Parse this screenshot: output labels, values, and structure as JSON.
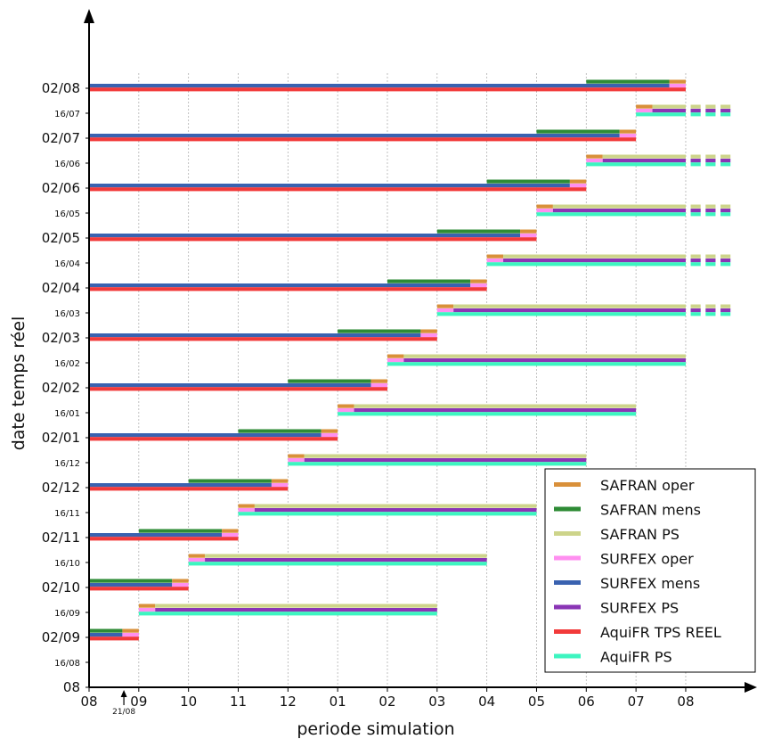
{
  "chart_data": {
    "type": "gantt",
    "xlabel": "periode simulation",
    "ylabel": "date temps réel",
    "x_ticks": [
      "08",
      "09",
      "10",
      "11",
      "12",
      "01",
      "02",
      "03",
      "04",
      "05",
      "06",
      "07",
      "08"
    ],
    "y_ticks": [
      "08",
      "16/08",
      "02/09",
      "16/09",
      "02/10",
      "16/10",
      "02/11",
      "16/11",
      "02/12",
      "16/12",
      "02/01",
      "16/01",
      "02/02",
      "16/02",
      "02/03",
      "16/03",
      "02/04",
      "16/04",
      "02/05",
      "16/05",
      "02/06",
      "16/06",
      "02/07",
      "16/07",
      "02/08"
    ],
    "x_range": [
      0,
      12.9
    ],
    "y_range": [
      0,
      24
    ],
    "grid": "vertical dotted",
    "legend_position": "bottom-right",
    "annotation": {
      "text": "21/08",
      "x": 0.7
    },
    "series": [
      {
        "name": "SAFRAN oper",
        "color": "#d9903a"
      },
      {
        "name": "SAFRAN mens",
        "color": "#2e8b35"
      },
      {
        "name": "SAFRAN PS",
        "color": "#cdd48a"
      },
      {
        "name": "SURFEX oper",
        "color": "#ff8ff0"
      },
      {
        "name": "SURFEX mens",
        "color": "#3a62b0"
      },
      {
        "name": "SURFEX PS",
        "color": "#8a35b5"
      },
      {
        "name": "AquiFR TPS REEL",
        "color": "#f23a3a"
      },
      {
        "name": "AquiFR PS",
        "color": "#3df5c0"
      }
    ],
    "runs_first_of_month": [
      {
        "y": 2,
        "mens_start": 0,
        "mens_end": 0.67,
        "oper_end": 1
      },
      {
        "y": 4,
        "mens_start": 0,
        "mens_end": 1.67,
        "oper_end": 2
      },
      {
        "y": 6,
        "mens_start": 1,
        "mens_end": 2.67,
        "oper_end": 3
      },
      {
        "y": 8,
        "mens_start": 2,
        "mens_end": 3.67,
        "oper_end": 4
      },
      {
        "y": 10,
        "mens_start": 3,
        "mens_end": 4.67,
        "oper_end": 5
      },
      {
        "y": 12,
        "mens_start": 4,
        "mens_end": 5.67,
        "oper_end": 6
      },
      {
        "y": 14,
        "mens_start": 5,
        "mens_end": 6.67,
        "oper_end": 7
      },
      {
        "y": 16,
        "mens_start": 6,
        "mens_end": 7.67,
        "oper_end": 8
      },
      {
        "y": 18,
        "mens_start": 7,
        "mens_end": 8.67,
        "oper_end": 9
      },
      {
        "y": 20,
        "mens_start": 8,
        "mens_end": 9.67,
        "oper_end": 10
      },
      {
        "y": 22,
        "mens_start": 9,
        "mens_end": 10.67,
        "oper_end": 11
      },
      {
        "y": 24,
        "mens_start": 10,
        "mens_end": 11.67,
        "oper_end": 12
      }
    ],
    "runs_mid_month": [
      {
        "y": 3,
        "start": 1,
        "oper_end": 1.33,
        "end": 7,
        "continues": false
      },
      {
        "y": 5,
        "start": 2,
        "oper_end": 2.33,
        "end": 8,
        "continues": false
      },
      {
        "y": 7,
        "start": 3,
        "oper_end": 3.33,
        "end": 9,
        "continues": false
      },
      {
        "y": 9,
        "start": 4,
        "oper_end": 4.33,
        "end": 10,
        "continues": false
      },
      {
        "y": 11,
        "start": 5,
        "oper_end": 5.33,
        "end": 11,
        "continues": false
      },
      {
        "y": 13,
        "start": 6,
        "oper_end": 6.33,
        "end": 12,
        "continues": false
      },
      {
        "y": 15,
        "start": 7,
        "oper_end": 7.33,
        "end": 12,
        "continues": true
      },
      {
        "y": 17,
        "start": 8,
        "oper_end": 8.33,
        "end": 12,
        "continues": true
      },
      {
        "y": 19,
        "start": 9,
        "oper_end": 9.33,
        "end": 12,
        "continues": true
      },
      {
        "y": 21,
        "start": 10,
        "oper_end": 10.33,
        "end": 12,
        "continues": true
      },
      {
        "y": 23,
        "start": 11,
        "oper_end": 11.33,
        "end": 12,
        "continues": true
      }
    ]
  }
}
